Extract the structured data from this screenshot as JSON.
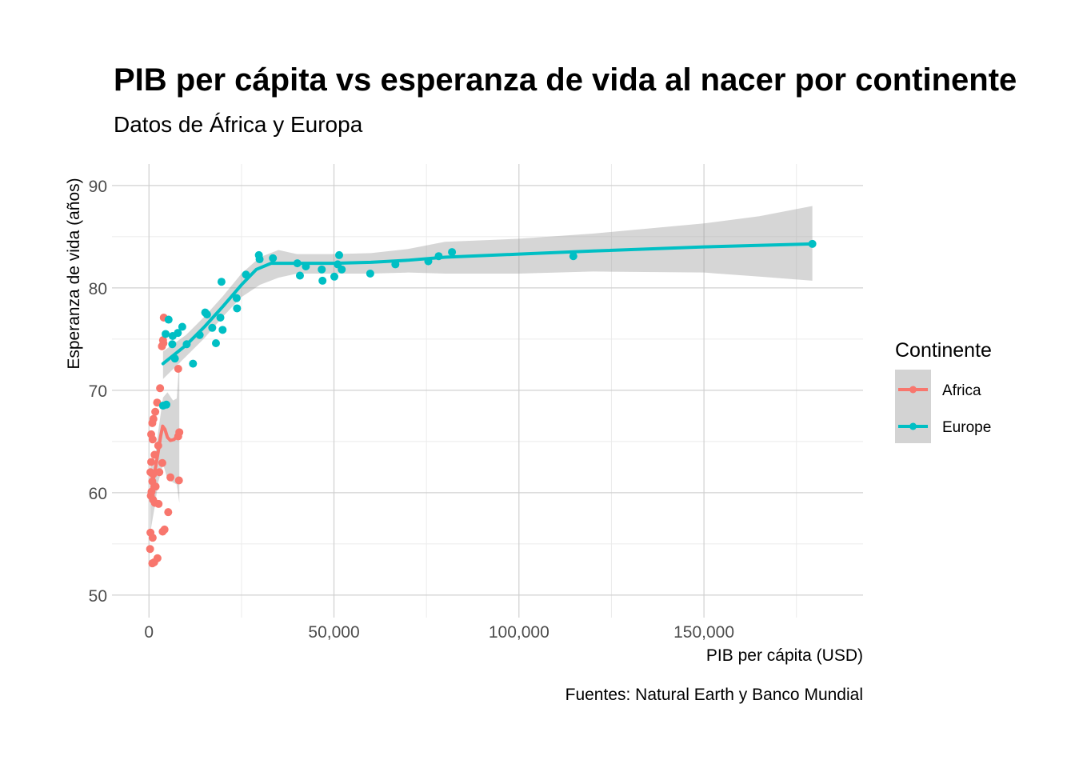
{
  "chart_data": {
    "type": "scatter",
    "title": "PIB per cápita vs esperanza de vida al nacer por continente",
    "subtitle": "Datos de África y Europa",
    "xlabel": "PIB per cápita  (USD)",
    "ylabel": "Esperanza de vida (años)",
    "caption": "Fuentes: Natural Earth y Banco Mundial",
    "xlim": [
      -10000,
      193000
    ],
    "ylim": [
      47.8,
      92.1
    ],
    "x_ticks": [
      0,
      50000,
      100000,
      150000
    ],
    "x_tick_labels": [
      "0",
      "50,000",
      "100,000",
      "150,000"
    ],
    "y_ticks": [
      50,
      60,
      70,
      80,
      90
    ],
    "y_tick_labels": [
      "50",
      "60",
      "70",
      "80",
      "90"
    ],
    "grid": true,
    "legend": {
      "title": "Continente",
      "position": "right"
    },
    "series": [
      {
        "name": "Africa",
        "color": "#F8766D",
        "points": [
          [
            4000,
            77.1
          ],
          [
            3800,
            74.9
          ],
          [
            3500,
            74.3
          ],
          [
            3900,
            74.6
          ],
          [
            7900,
            72.1
          ],
          [
            3000,
            70.2
          ],
          [
            2200,
            68.8
          ],
          [
            1700,
            67.9
          ],
          [
            1200,
            67.2
          ],
          [
            900,
            66.8
          ],
          [
            600,
            65.7
          ],
          [
            1000,
            65.2
          ],
          [
            8200,
            65.9
          ],
          [
            7900,
            65.5
          ],
          [
            2500,
            64.6
          ],
          [
            1500,
            63.7
          ],
          [
            600,
            63.0
          ],
          [
            3600,
            62.9
          ],
          [
            2800,
            62.0
          ],
          [
            400,
            62.0
          ],
          [
            1100,
            61.8
          ],
          [
            5800,
            61.5
          ],
          [
            8100,
            61.2
          ],
          [
            900,
            61.1
          ],
          [
            1800,
            60.6
          ],
          [
            700,
            60.1
          ],
          [
            500,
            59.7
          ],
          [
            1100,
            59.3
          ],
          [
            1600,
            59.0
          ],
          [
            2600,
            58.9
          ],
          [
            5200,
            58.1
          ],
          [
            4200,
            56.4
          ],
          [
            3700,
            56.2
          ],
          [
            400,
            56.1
          ],
          [
            1000,
            55.6
          ],
          [
            300,
            54.5
          ],
          [
            2300,
            53.6
          ],
          [
            900,
            53.1
          ],
          [
            1400,
            53.2
          ]
        ],
        "smooth": [
          [
            300,
            59.5
          ],
          [
            1000,
            61.0
          ],
          [
            1800,
            62.5
          ],
          [
            2500,
            64.0
          ],
          [
            3200,
            65.6
          ],
          [
            3700,
            66.5
          ],
          [
            4300,
            66.2
          ],
          [
            5000,
            65.4
          ],
          [
            5800,
            65.1
          ],
          [
            6800,
            65.2
          ],
          [
            8200,
            65.8
          ]
        ],
        "ci_upper": [
          [
            300,
            62.5
          ],
          [
            1500,
            63.0
          ],
          [
            2500,
            66.0
          ],
          [
            3800,
            69.3
          ],
          [
            5000,
            69.8
          ],
          [
            6500,
            69.0
          ],
          [
            7500,
            69.2
          ],
          [
            8200,
            73.0
          ]
        ],
        "ci_lower": [
          [
            300,
            56.0
          ],
          [
            1500,
            58.5
          ],
          [
            2500,
            61.0
          ],
          [
            3800,
            62.8
          ],
          [
            5000,
            61.3
          ],
          [
            6500,
            61.0
          ],
          [
            7500,
            60.8
          ],
          [
            8200,
            59.0
          ]
        ]
      },
      {
        "name": "Europe",
        "color": "#00BFC4",
        "points": [
          [
            4700,
            68.6
          ],
          [
            3800,
            68.5
          ],
          [
            5300,
            76.9
          ],
          [
            7800,
            75.6
          ],
          [
            6400,
            75.3
          ],
          [
            4500,
            75.5
          ],
          [
            9000,
            76.2
          ],
          [
            6300,
            74.5
          ],
          [
            10200,
            74.5
          ],
          [
            7000,
            73.1
          ],
          [
            11900,
            72.6
          ],
          [
            13700,
            75.4
          ],
          [
            15200,
            77.6
          ],
          [
            15700,
            77.4
          ],
          [
            17100,
            76.1
          ],
          [
            18100,
            74.6
          ],
          [
            19300,
            77.1
          ],
          [
            19900,
            75.9
          ],
          [
            19600,
            80.6
          ],
          [
            23700,
            79.0
          ],
          [
            23800,
            78.0
          ],
          [
            26200,
            81.3
          ],
          [
            29700,
            83.2
          ],
          [
            29900,
            82.8
          ],
          [
            33500,
            82.9
          ],
          [
            40100,
            82.4
          ],
          [
            40800,
            81.2
          ],
          [
            42400,
            82.1
          ],
          [
            46700,
            81.8
          ],
          [
            46900,
            80.7
          ],
          [
            50100,
            81.1
          ],
          [
            51000,
            82.3
          ],
          [
            51400,
            83.2
          ],
          [
            52100,
            81.8
          ],
          [
            59800,
            81.4
          ],
          [
            66600,
            82.3
          ],
          [
            75500,
            82.6
          ],
          [
            78300,
            83.1
          ],
          [
            81900,
            83.5
          ],
          [
            114700,
            83.1
          ],
          [
            179300,
            84.3
          ]
        ],
        "smooth": [
          [
            3800,
            72.6
          ],
          [
            10000,
            74.4
          ],
          [
            15000,
            76.2
          ],
          [
            20000,
            78.2
          ],
          [
            25000,
            80.3
          ],
          [
            29000,
            81.8
          ],
          [
            33000,
            82.4
          ],
          [
            40000,
            82.4
          ],
          [
            50000,
            82.4
          ],
          [
            60000,
            82.5
          ],
          [
            70000,
            82.7
          ],
          [
            80000,
            83.0
          ],
          [
            100000,
            83.3
          ],
          [
            120000,
            83.6
          ],
          [
            150000,
            84.0
          ],
          [
            179300,
            84.3
          ]
        ],
        "ci_upper": [
          [
            3800,
            73.8
          ],
          [
            10000,
            75.4
          ],
          [
            15000,
            77.2
          ],
          [
            20000,
            79.2
          ],
          [
            25000,
            81.4
          ],
          [
            30000,
            83.0
          ],
          [
            35000,
            83.7
          ],
          [
            40000,
            83.3
          ],
          [
            50000,
            83.3
          ],
          [
            60000,
            83.4
          ],
          [
            70000,
            83.8
          ],
          [
            80000,
            84.5
          ],
          [
            100000,
            84.8
          ],
          [
            120000,
            85.3
          ],
          [
            150000,
            86.3
          ],
          [
            165000,
            87.0
          ],
          [
            179300,
            88.0
          ]
        ],
        "ci_lower": [
          [
            3800,
            71.1
          ],
          [
            10000,
            73.3
          ],
          [
            15000,
            75.1
          ],
          [
            20000,
            77.2
          ],
          [
            25000,
            79.1
          ],
          [
            30000,
            80.3
          ],
          [
            35000,
            81.0
          ],
          [
            40000,
            81.4
          ],
          [
            50000,
            81.4
          ],
          [
            60000,
            81.4
          ],
          [
            70000,
            81.5
          ],
          [
            80000,
            81.4
          ],
          [
            100000,
            81.4
          ],
          [
            120000,
            81.6
          ],
          [
            150000,
            81.5
          ],
          [
            165000,
            81.1
          ],
          [
            179300,
            80.7
          ]
        ]
      }
    ]
  }
}
